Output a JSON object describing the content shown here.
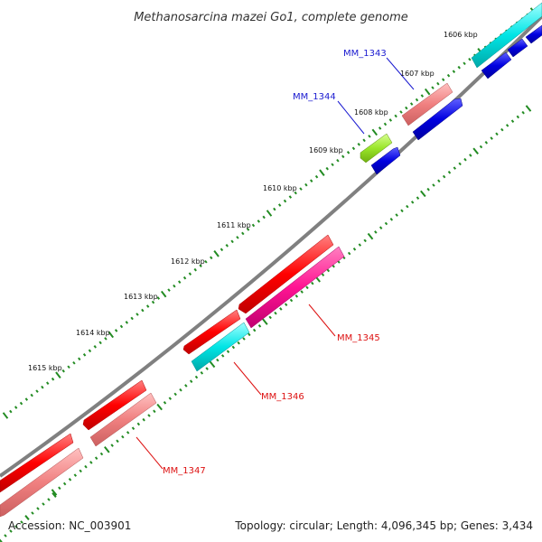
{
  "title": "Methanosarcina mazei Go1, complete genome",
  "footer": {
    "accession": "Accession: NC_003901",
    "summary": "Topology: circular; Length: 4,096,345 bp; Genes: 3,434"
  },
  "ticks": [
    "1606 kbp",
    "1607 kbp",
    "1608 kbp",
    "1609 kbp",
    "1610 kbp",
    "1611 kbp",
    "1612 kbp",
    "1613 kbp",
    "1614 kbp",
    "1615 kbp"
  ],
  "gene_labels": [
    {
      "text": "MM_1343",
      "color": "#1a1ad0"
    },
    {
      "text": "MM_1344",
      "color": "#1a1ad0"
    },
    {
      "text": "MM_1345",
      "color": "#dd1111"
    },
    {
      "text": "MM_1346",
      "color": "#dd1111"
    },
    {
      "text": "MM_1347",
      "color": "#dd1111"
    }
  ],
  "colors": {
    "red": "#ff0000",
    "salmon": "#f08080",
    "cyan": "#00e5e5",
    "blue": "#0000e0",
    "magenta": "#ff1493",
    "lime": "#9ae62a",
    "backbone": "#808080",
    "tick_green": "#228b22"
  }
}
